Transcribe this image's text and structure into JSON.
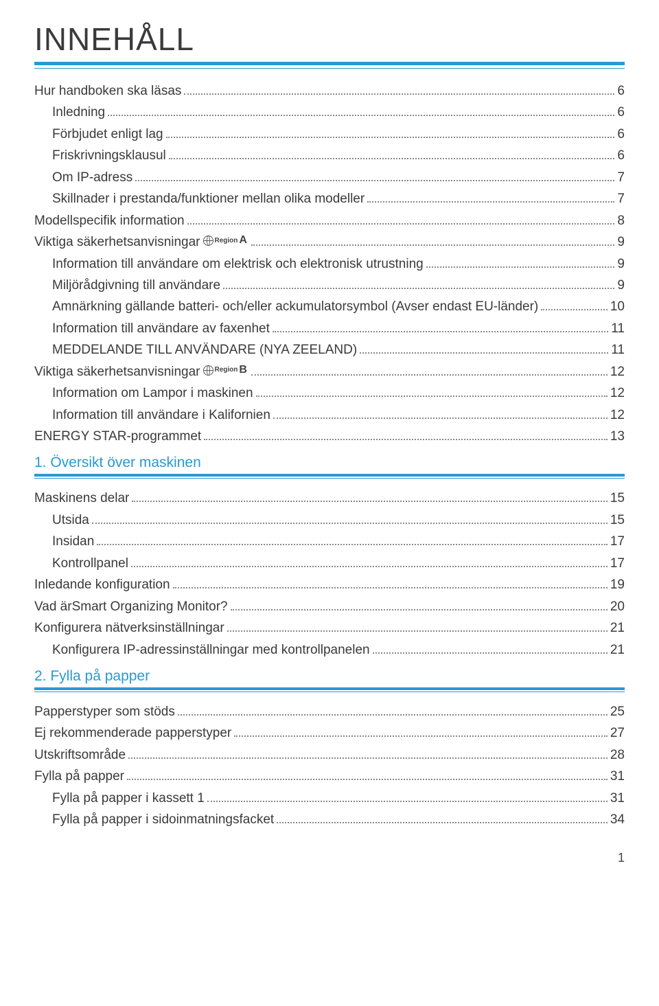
{
  "title": "INNEHÅLL",
  "colors": {
    "accent": "#2899d5",
    "text": "#3a3a3a",
    "dot": "#888888",
    "background": "#ffffff"
  },
  "typography": {
    "title_fontsize": 46,
    "row_fontsize": 19,
    "section_fontsize": 21,
    "font_family": "Helvetica Neue"
  },
  "badges": {
    "regionA": {
      "word": "Region",
      "letter": "A"
    },
    "regionB": {
      "word": "Region",
      "letter": "B"
    }
  },
  "toc": [
    {
      "label": "Hur handboken ska läsas",
      "page": "6",
      "indent": 0
    },
    {
      "label": "Inledning",
      "page": "6",
      "indent": 1
    },
    {
      "label": "Förbjudet enligt lag",
      "page": "6",
      "indent": 1
    },
    {
      "label": "Friskrivningsklausul",
      "page": "6",
      "indent": 1
    },
    {
      "label": "Om IP-adress",
      "page": "7",
      "indent": 1
    },
    {
      "label": "Skillnader i prestanda/funktioner mellan olika modeller",
      "page": "7",
      "indent": 1
    },
    {
      "label": "Modellspecifik information",
      "page": "8",
      "indent": 0
    },
    {
      "label": "Viktiga säkerhetsanvisningar",
      "page": "9",
      "indent": 0,
      "badge": "regionA"
    },
    {
      "label": "Information till användare om elektrisk och elektronisk utrustning",
      "page": "9",
      "indent": 1
    },
    {
      "label": "Miljörådgivning till användare",
      "page": "9",
      "indent": 1
    },
    {
      "label": "Amnärkning gällande batteri- och/eller ackumulatorsymbol (Avser endast EU-länder)",
      "page": "10",
      "indent": 1
    },
    {
      "label": "Information till användare av faxenhet",
      "page": "11",
      "indent": 1
    },
    {
      "label": "MEDDELANDE TILL ANVÄNDARE (NYA ZEELAND)",
      "page": "11",
      "indent": 1
    },
    {
      "label": "Viktiga säkerhetsanvisningar",
      "page": "12",
      "indent": 0,
      "badge": "regionB"
    },
    {
      "label": "Information om Lampor i maskinen",
      "page": "12",
      "indent": 1
    },
    {
      "label": "Information till användare i Kalifornien",
      "page": "12",
      "indent": 1
    },
    {
      "label": "ENERGY STAR-programmet",
      "page": "13",
      "indent": 0
    }
  ],
  "section1": {
    "title": "1. Översikt över maskinen",
    "items": [
      {
        "label": "Maskinens delar",
        "page": "15",
        "indent": 0
      },
      {
        "label": "Utsida",
        "page": "15",
        "indent": 1
      },
      {
        "label": "Insidan",
        "page": "17",
        "indent": 1
      },
      {
        "label": "Kontrollpanel",
        "page": "17",
        "indent": 1
      },
      {
        "label": "Inledande konfiguration",
        "page": "19",
        "indent": 0
      },
      {
        "label": "Vad ärSmart Organizing Monitor?",
        "page": "20",
        "indent": 0
      },
      {
        "label": "Konfigurera nätverksinställningar",
        "page": "21",
        "indent": 0
      },
      {
        "label": "Konfigurera IP-adressinställningar med kontrollpanelen",
        "page": "21",
        "indent": 1
      }
    ]
  },
  "section2": {
    "title": "2. Fylla på papper",
    "items": [
      {
        "label": "Papperstyper som stöds",
        "page": "25",
        "indent": 0
      },
      {
        "label": "Ej rekommenderade papperstyper",
        "page": "27",
        "indent": 0
      },
      {
        "label": "Utskriftsområde",
        "page": "28",
        "indent": 0
      },
      {
        "label": "Fylla på papper",
        "page": "31",
        "indent": 0
      },
      {
        "label": "Fylla på papper i kassett 1",
        "page": "31",
        "indent": 1
      },
      {
        "label": "Fylla på papper i sidoinmatningsfacket",
        "page": "34",
        "indent": 1
      }
    ]
  },
  "page_number": "1"
}
